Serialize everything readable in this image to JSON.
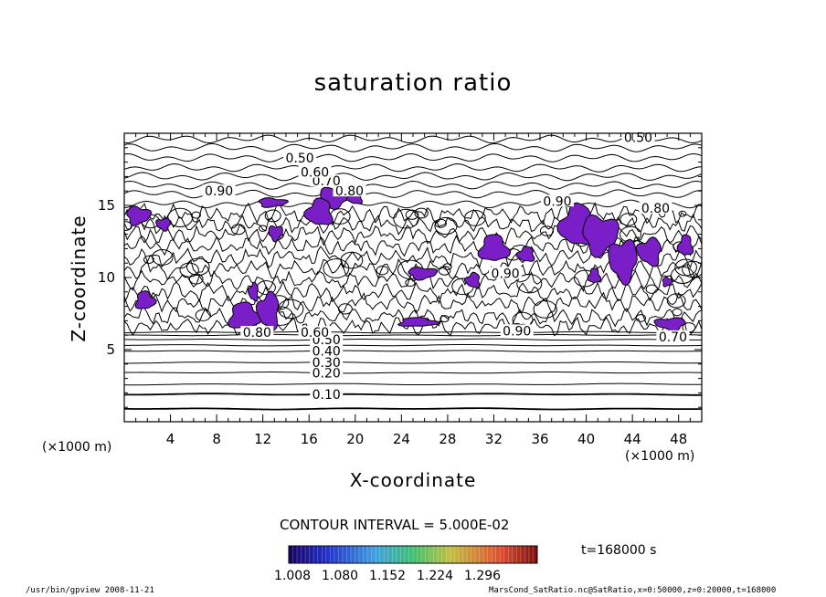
{
  "colors": {
    "contour": "#000000",
    "supersat_fill": "#7a1fc7",
    "background": "#ffffff"
  },
  "contour_interval_text": "CONTOUR INTERVAL = 5.000E-02",
  "time_text": "t=168000 s",
  "footer": {
    "left": "/usr/bin/gpview   2008-11-21",
    "right": "MarsCond_SatRatio.nc@SatRatio,x=0:50000,z=0:20000,t=168000"
  },
  "colorbar": {
    "tick_labels": [
      "1.008",
      "1.080",
      "1.152",
      "1.224",
      "1.296"
    ],
    "min": 1.008,
    "max": 1.296,
    "colormap": "rainbow (dark blue to dark red)"
  },
  "chart_data": {
    "type": "contour",
    "title": "saturation ratio",
    "xlabel": "X-coordinate",
    "ylabel": "Z-coordinate",
    "x_unit": "(×1000 m)",
    "y_unit": "(×1000 m)",
    "xlim": [
      0,
      50
    ],
    "ylim": [
      0,
      20
    ],
    "xticks": [
      "4",
      "8",
      "12",
      "16",
      "20",
      "24",
      "28",
      "32",
      "36",
      "40",
      "44",
      "48"
    ],
    "xtick_values": [
      4,
      8,
      12,
      16,
      20,
      24,
      28,
      32,
      36,
      40,
      44,
      48
    ],
    "yticks": [
      "5",
      "10",
      "15"
    ],
    "ytick_values": [
      5,
      10,
      15
    ],
    "contour_interval": 0.05,
    "labeled_levels": [
      {
        "text": "0.10",
        "x": 17.5,
        "z": 1.9
      },
      {
        "text": "0.20",
        "x": 17.5,
        "z": 3.4
      },
      {
        "text": "0.30",
        "x": 17.5,
        "z": 4.1
      },
      {
        "text": "0.40",
        "x": 17.5,
        "z": 4.9
      },
      {
        "text": "0.50",
        "x": 17.5,
        "z": 5.7
      },
      {
        "text": "0.60",
        "x": 16.5,
        "z": 6.2
      },
      {
        "text": "0.80",
        "x": 11.5,
        "z": 6.2
      },
      {
        "text": "0.90",
        "x": 34.0,
        "z": 6.3
      },
      {
        "text": "0.70",
        "x": 47.5,
        "z": 5.9
      },
      {
        "text": "0.90",
        "x": 33.0,
        "z": 10.3
      },
      {
        "text": "0.90",
        "x": 8.2,
        "z": 16.0
      },
      {
        "text": "0.90",
        "x": 37.5,
        "z": 15.3
      },
      {
        "text": "0.80",
        "x": 46.0,
        "z": 14.8
      },
      {
        "text": "0.80",
        "x": 19.5,
        "z": 16.0
      },
      {
        "text": "0.70",
        "x": 17.5,
        "z": 16.7
      },
      {
        "text": "0.60",
        "x": 16.5,
        "z": 17.3
      },
      {
        "text": "0.50",
        "x": 15.2,
        "z": 18.3
      },
      {
        "text": "0.50",
        "x": 44.5,
        "z": 19.7
      }
    ],
    "supersaturated_regions": [
      {
        "x": 12.8,
        "z": 15.2,
        "rx": 1.2,
        "rz": 0.3
      },
      {
        "x": 18.2,
        "z": 15.6,
        "rx": 1.2,
        "rz": 0.7
      },
      {
        "x": 16.9,
        "z": 14.5,
        "rx": 1.1,
        "rz": 0.9
      },
      {
        "x": 20.0,
        "z": 15.5,
        "rx": 0.6,
        "rz": 0.4
      },
      {
        "x": 1.2,
        "z": 14.3,
        "rx": 1.0,
        "rz": 0.6
      },
      {
        "x": 3.4,
        "z": 13.7,
        "rx": 0.6,
        "rz": 0.4
      },
      {
        "x": 13.1,
        "z": 13.1,
        "rx": 0.6,
        "rz": 0.5
      },
      {
        "x": 32.0,
        "z": 12.0,
        "rx": 1.2,
        "rz": 0.9
      },
      {
        "x": 34.8,
        "z": 11.6,
        "rx": 0.7,
        "rz": 0.5
      },
      {
        "x": 39.2,
        "z": 13.6,
        "rx": 1.4,
        "rz": 1.4
      },
      {
        "x": 41.2,
        "z": 13.0,
        "rx": 1.5,
        "rz": 1.3
      },
      {
        "x": 43.2,
        "z": 11.2,
        "rx": 1.2,
        "rz": 1.4
      },
      {
        "x": 45.5,
        "z": 11.8,
        "rx": 1.0,
        "rz": 0.9
      },
      {
        "x": 48.6,
        "z": 12.2,
        "rx": 0.6,
        "rz": 0.7
      },
      {
        "x": 47.0,
        "z": 9.7,
        "rx": 0.4,
        "rz": 0.3
      },
      {
        "x": 40.7,
        "z": 10.1,
        "rx": 0.5,
        "rz": 0.5
      },
      {
        "x": 25.8,
        "z": 10.3,
        "rx": 1.2,
        "rz": 0.4
      },
      {
        "x": 30.2,
        "z": 9.8,
        "rx": 0.6,
        "rz": 0.5
      },
      {
        "x": 1.8,
        "z": 8.4,
        "rx": 0.8,
        "rz": 0.6
      },
      {
        "x": 10.4,
        "z": 7.3,
        "rx": 1.3,
        "rz": 0.9
      },
      {
        "x": 12.5,
        "z": 7.7,
        "rx": 0.9,
        "rz": 1.2
      },
      {
        "x": 11.2,
        "z": 9.0,
        "rx": 0.4,
        "rz": 0.6
      },
      {
        "x": 25.4,
        "z": 6.9,
        "rx": 1.6,
        "rz": 0.3
      },
      {
        "x": 34.2,
        "z": 6.6,
        "rx": 0.5,
        "rz": 0.2
      },
      {
        "x": 47.3,
        "z": 6.8,
        "rx": 1.3,
        "rz": 0.4
      }
    ]
  }
}
